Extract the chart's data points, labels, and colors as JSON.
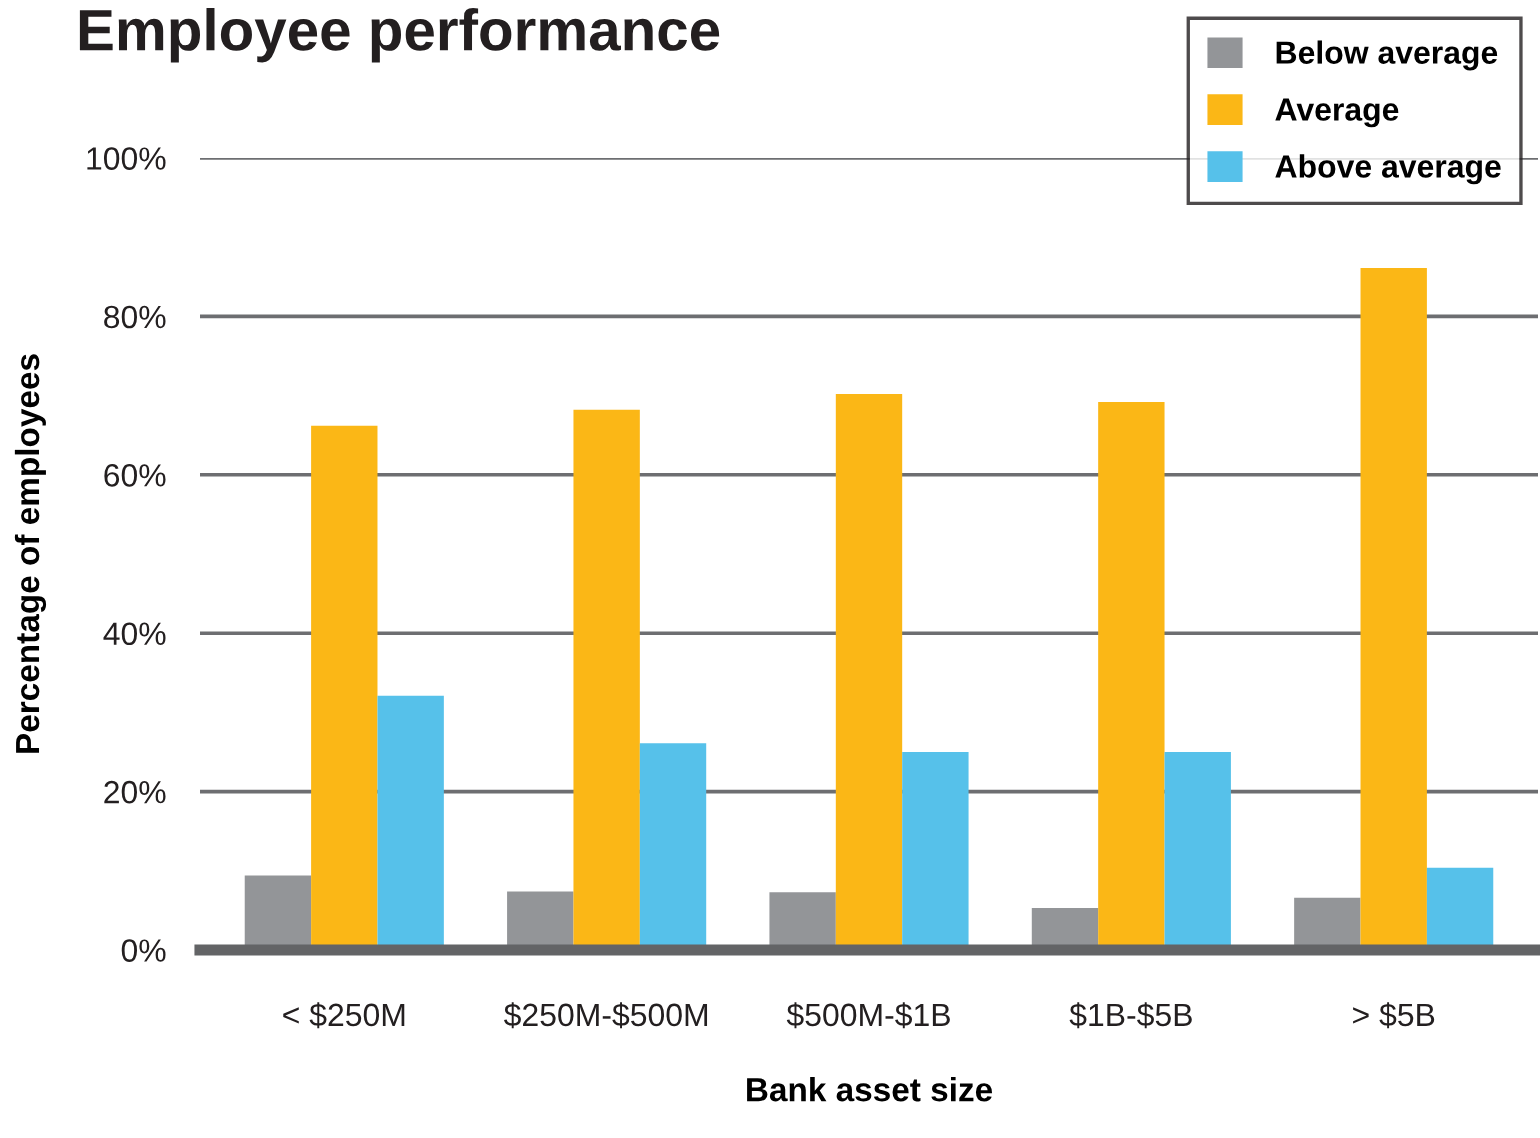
{
  "chart_data": {
    "type": "bar",
    "title": "Employee performance",
    "xlabel": "Bank asset size",
    "ylabel": "Percentage of employees",
    "categories": [
      "< $250M",
      "$250M-$500M",
      "$500M-$1B",
      "$1B-$5B",
      "> $5B"
    ],
    "series": [
      {
        "name": "Below average",
        "color": "#939598",
        "values": [
          9.4,
          7.4,
          7.3,
          5.3,
          6.6
        ]
      },
      {
        "name": "Average",
        "color": "#fbb716",
        "values": [
          66.2,
          68.2,
          70.2,
          69.2,
          86.1
        ]
      },
      {
        "name": "Above average",
        "color": "#56c1ea",
        "values": [
          32.1,
          26.1,
          25.0,
          25.0,
          10.4
        ]
      }
    ],
    "ylim": [
      0,
      100
    ],
    "yticks": [
      {
        "value": 0,
        "label": "0%"
      },
      {
        "value": 20,
        "label": "20%"
      },
      {
        "value": 40,
        "label": "40%"
      },
      {
        "value": 60,
        "label": "60%"
      },
      {
        "value": 80,
        "label": "80%"
      },
      {
        "value": 100,
        "label": "100%"
      }
    ],
    "grid": "y",
    "legend": "top right"
  }
}
